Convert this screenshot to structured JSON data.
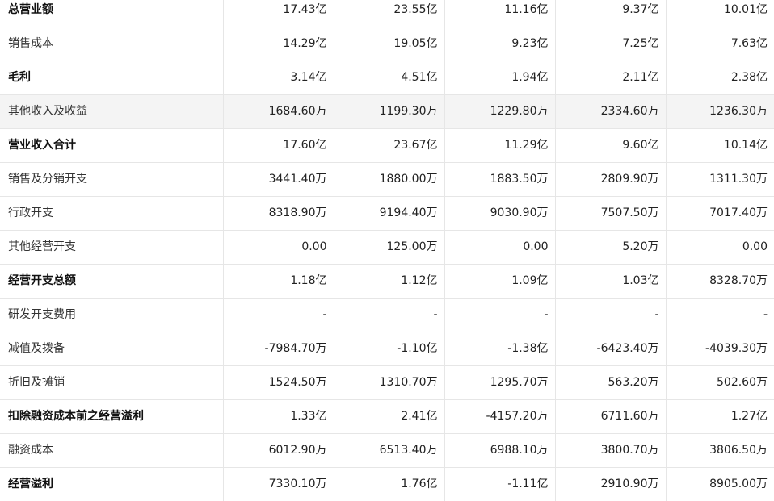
{
  "rows": [
    {
      "label": "总营业额",
      "bold": true,
      "shaded": false,
      "values": [
        "17.43亿",
        "23.55亿",
        "11.16亿",
        "9.37亿",
        "10.01亿"
      ]
    },
    {
      "label": "销售成本",
      "bold": false,
      "shaded": false,
      "values": [
        "14.29亿",
        "19.05亿",
        "9.23亿",
        "7.25亿",
        "7.63亿"
      ]
    },
    {
      "label": "毛利",
      "bold": true,
      "shaded": false,
      "values": [
        "3.14亿",
        "4.51亿",
        "1.94亿",
        "2.11亿",
        "2.38亿"
      ]
    },
    {
      "label": "其他收入及收益",
      "bold": false,
      "shaded": true,
      "values": [
        "1684.60万",
        "1199.30万",
        "1229.80万",
        "2334.60万",
        "1236.30万"
      ]
    },
    {
      "label": "营业收入合计",
      "bold": true,
      "shaded": false,
      "values": [
        "17.60亿",
        "23.67亿",
        "11.29亿",
        "9.60亿",
        "10.14亿"
      ]
    },
    {
      "label": "销售及分销开支",
      "bold": false,
      "shaded": false,
      "values": [
        "3441.40万",
        "1880.00万",
        "1883.50万",
        "2809.90万",
        "1311.30万"
      ]
    },
    {
      "label": "行政开支",
      "bold": false,
      "shaded": false,
      "values": [
        "8318.90万",
        "9194.40万",
        "9030.90万",
        "7507.50万",
        "7017.40万"
      ]
    },
    {
      "label": "其他经营开支",
      "bold": false,
      "shaded": false,
      "values": [
        "0.00",
        "125.00万",
        "0.00",
        "5.20万",
        "0.00"
      ]
    },
    {
      "label": "经营开支总额",
      "bold": true,
      "shaded": false,
      "values": [
        "1.18亿",
        "1.12亿",
        "1.09亿",
        "1.03亿",
        "8328.70万"
      ]
    },
    {
      "label": "研发开支费用",
      "bold": false,
      "shaded": false,
      "values": [
        "-",
        "-",
        "-",
        "-",
        "-"
      ]
    },
    {
      "label": "减值及拨备",
      "bold": false,
      "shaded": false,
      "values": [
        "-7984.70万",
        "-1.10亿",
        "-1.38亿",
        "-6423.40万",
        "-4039.30万"
      ]
    },
    {
      "label": "折旧及摊销",
      "bold": false,
      "shaded": false,
      "values": [
        "1524.50万",
        "1310.70万",
        "1295.70万",
        "563.20万",
        "502.60万"
      ]
    },
    {
      "label": "扣除融资成本前之经营溢利",
      "bold": true,
      "shaded": false,
      "values": [
        "1.33亿",
        "2.41亿",
        "-4157.20万",
        "6711.60万",
        "1.27亿"
      ]
    },
    {
      "label": "融资成本",
      "bold": false,
      "shaded": false,
      "values": [
        "6012.90万",
        "6513.40万",
        "6988.10万",
        "3800.70万",
        "3806.50万"
      ]
    },
    {
      "label": "经营溢利",
      "bold": true,
      "shaded": false,
      "values": [
        "7330.10万",
        "1.76亿",
        "-1.11亿",
        "2910.90万",
        "8905.00万"
      ]
    }
  ]
}
